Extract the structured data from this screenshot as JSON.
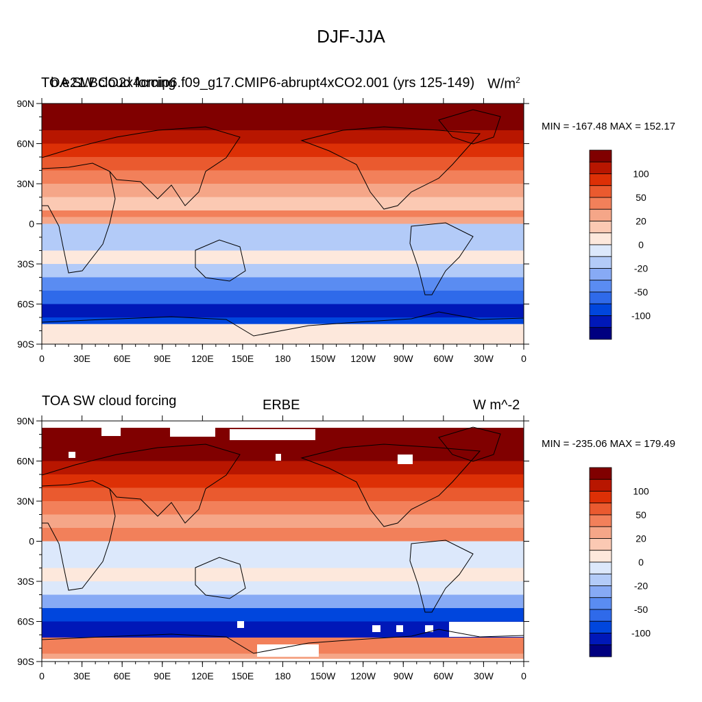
{
  "title": "DJF-JJA",
  "colors": {
    "levels": [
      "#000080",
      "#0018b8",
      "#0046dd",
      "#2f6aea",
      "#5a8cf2",
      "#87aaf5",
      "#b3cbf8",
      "#dce8fb",
      "#fde8dc",
      "#fbc9b3",
      "#f5a688",
      "#f2805a",
      "#ea5a2f",
      "#dd3006",
      "#b81600",
      "#800000"
    ]
  },
  "colorbar": {
    "labels": [
      "100",
      "50",
      "20",
      "0",
      "-20",
      "-50",
      "-100"
    ]
  },
  "chart_data": [
    {
      "type": "heatmap",
      "title_left": "TOA SW cloud forcing",
      "title_left_overlay": "b.e21.BCO2x4cmip6.f09_g17.CMIP6-abrupt4xCO2.001 (yrs 125-149)",
      "units": "W/m",
      "units_sup": "2",
      "minmax": "MIN = -167.48 MAX = 152.17",
      "x_ticks": [
        "0",
        "30E",
        "60E",
        "90E",
        "120E",
        "150E",
        "180",
        "150W",
        "120W",
        "90W",
        "60W",
        "30W",
        "0"
      ],
      "y_ticks": [
        "90N",
        "60N",
        "30N",
        "0",
        "30S",
        "60S",
        "90S"
      ],
      "lat_profile": [
        {
          "lat": 90,
          "value": 150
        },
        {
          "lat": 80,
          "value": 110
        },
        {
          "lat": 70,
          "value": 80
        },
        {
          "lat": 60,
          "value": 60
        },
        {
          "lat": 50,
          "value": 45
        },
        {
          "lat": 40,
          "value": 25
        },
        {
          "lat": 30,
          "value": 15
        },
        {
          "lat": 20,
          "value": 2
        },
        {
          "lat": 10,
          "value": 20
        },
        {
          "lat": 5,
          "value": 10
        },
        {
          "lat": 0,
          "value": -30
        },
        {
          "lat": -10,
          "value": -25
        },
        {
          "lat": -20,
          "value": -10
        },
        {
          "lat": -30,
          "value": -25
        },
        {
          "lat": -40,
          "value": -60
        },
        {
          "lat": -50,
          "value": -100
        },
        {
          "lat": -60,
          "value": -130
        },
        {
          "lat": -70,
          "value": -110
        },
        {
          "lat": -75,
          "value": -5
        },
        {
          "lat": -90,
          "value": -5
        }
      ]
    },
    {
      "type": "heatmap",
      "title_left": "TOA SW cloud forcing",
      "title_center": "ERBE",
      "units": "W m^-2",
      "minmax": "MIN = -235.06 MAX = 179.49",
      "x_ticks": [
        "0",
        "30E",
        "60E",
        "90E",
        "120E",
        "150E",
        "180",
        "150W",
        "120W",
        "90W",
        "60W",
        "30W",
        "0"
      ],
      "y_ticks": [
        "90N",
        "60N",
        "30N",
        "0",
        "30S",
        "60S",
        "90S"
      ],
      "lat_profile": [
        {
          "lat": 84,
          "value": 115
        },
        {
          "lat": 70,
          "value": 100
        },
        {
          "lat": 60,
          "value": 80
        },
        {
          "lat": 50,
          "value": 65
        },
        {
          "lat": 40,
          "value": 40
        },
        {
          "lat": 30,
          "value": 25
        },
        {
          "lat": 20,
          "value": 15
        },
        {
          "lat": 10,
          "value": 35
        },
        {
          "lat": 5,
          "value": 20
        },
        {
          "lat": 0,
          "value": -20
        },
        {
          "lat": -10,
          "value": -15
        },
        {
          "lat": -20,
          "value": -5
        },
        {
          "lat": -30,
          "value": -20
        },
        {
          "lat": -40,
          "value": -50
        },
        {
          "lat": -50,
          "value": -110
        },
        {
          "lat": -60,
          "value": -150
        },
        {
          "lat": -68,
          "value": -140
        },
        {
          "lat": -72,
          "value": 20
        },
        {
          "lat": -84,
          "value": 15
        }
      ]
    }
  ]
}
